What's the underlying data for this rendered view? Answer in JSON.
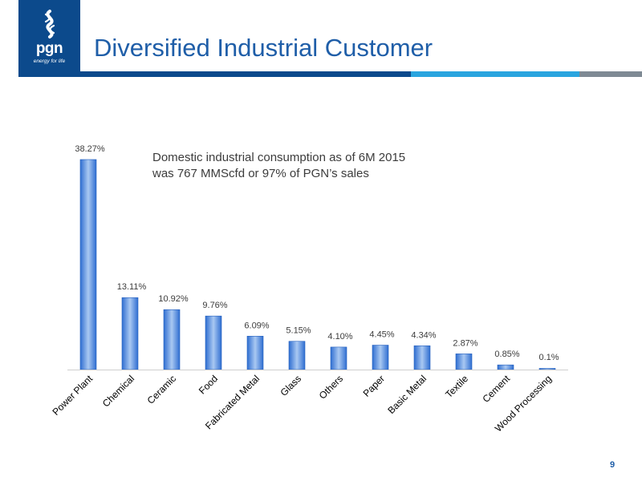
{
  "header": {
    "title": "Diversified Industrial Customer",
    "logo_text": "pgn",
    "logo_tagline": "energy for life"
  },
  "note_lines": [
    "Domestic industrial consumption as of 6M 2015",
    "was 767 MMScfd or 97% of PGN’s sales"
  ],
  "footer": {
    "page_number": "9"
  },
  "colors": {
    "brand_navy": "#0c4a8c",
    "title_blue": "#1f5ea8",
    "accent_sky": "#2aa5df",
    "accent_gray": "#7f8a94",
    "bar_dark": "#2f6ed1",
    "bar_light": "#a9c8f2"
  },
  "chart_data": {
    "type": "bar",
    "title": "",
    "xlabel": "",
    "ylabel": "",
    "categories": [
      "Power Plant",
      "Chemical",
      "Ceramic",
      "Food",
      "Fabricated Metal",
      "Glass",
      "Others",
      "Paper",
      "Basic Metal",
      "Textile",
      "Cement",
      "Wood Processing"
    ],
    "values": [
      38.27,
      13.11,
      10.92,
      9.76,
      6.09,
      5.15,
      4.1,
      4.45,
      4.34,
      2.87,
      0.85,
      0.1
    ],
    "data_labels": [
      "38.27%",
      "13.11%",
      "10.92%",
      "9.76%",
      "6.09%",
      "5.15%",
      "4.10%",
      "4.45%",
      "4.34%",
      "2.87%",
      "0.85%",
      "0.1%"
    ],
    "ylim": [
      0,
      38.27
    ],
    "grid": false,
    "legend": "none"
  }
}
